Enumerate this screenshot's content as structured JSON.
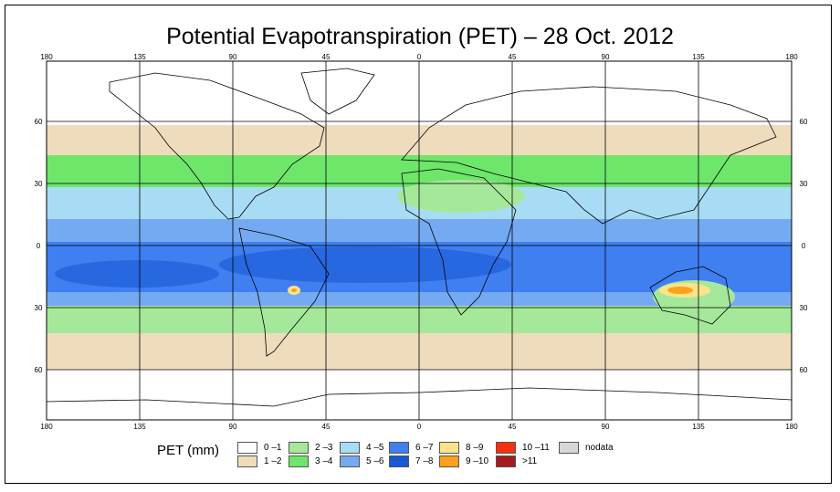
{
  "title": "Potential Evapotranspiration (PET) – 28 Oct. 2012",
  "longitude_ticks": [
    "180",
    "135",
    "90",
    "45",
    "0",
    "45",
    "90",
    "135",
    "180"
  ],
  "latitude_ticks": [
    "60",
    "30",
    "0",
    "30",
    "60"
  ],
  "legend": {
    "title": "PET (mm)",
    "items": [
      {
        "label": "0 –1",
        "color": "#ffffff"
      },
      {
        "label": "1 –2",
        "color": "#eedcbd"
      },
      {
        "label": "2 –3",
        "color": "#a6e89a"
      },
      {
        "label": "3 –4",
        "color": "#6ee66a"
      },
      {
        "label": "4 –5",
        "color": "#a8dcf4"
      },
      {
        "label": "5 –6",
        "color": "#73aaf1"
      },
      {
        "label": "6 –7",
        "color": "#3f7ff0"
      },
      {
        "label": "7 –8",
        "color": "#1857d6"
      },
      {
        "label": "8 –9",
        "color": "#fbe38a"
      },
      {
        "label": "9 –10",
        "color": "#fba11a"
      },
      {
        "label": "10 –11",
        "color": "#f4310e"
      },
      {
        "label": ">11",
        "color": "#a41c1c"
      },
      {
        "label": "nodata",
        "color": "#d7d7d7"
      }
    ]
  }
}
